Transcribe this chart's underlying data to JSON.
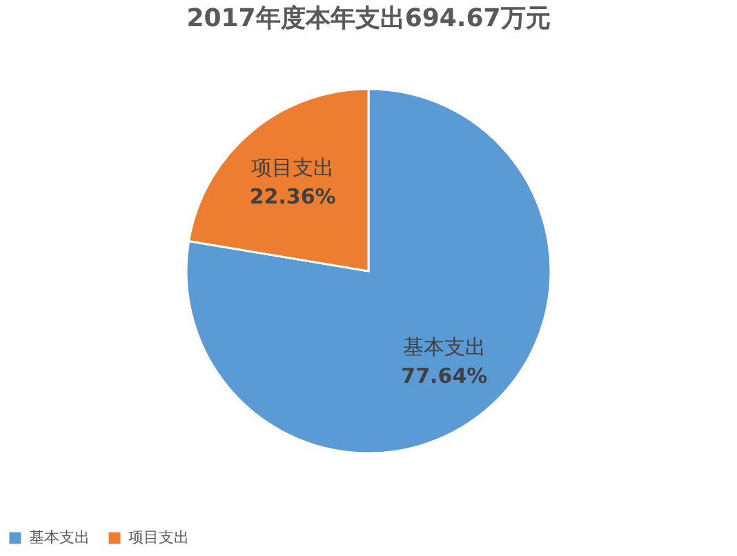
{
  "chart_data": {
    "type": "pie",
    "title": "2017年度本年支出694.67万元",
    "categories": [
      "基本支出",
      "项目支出"
    ],
    "values": [
      77.64,
      22.36
    ],
    "colors": [
      "#5b9bd5",
      "#ed7d31"
    ],
    "value_labels": [
      "77.64%",
      "22.36%"
    ],
    "legend": "bottom"
  }
}
